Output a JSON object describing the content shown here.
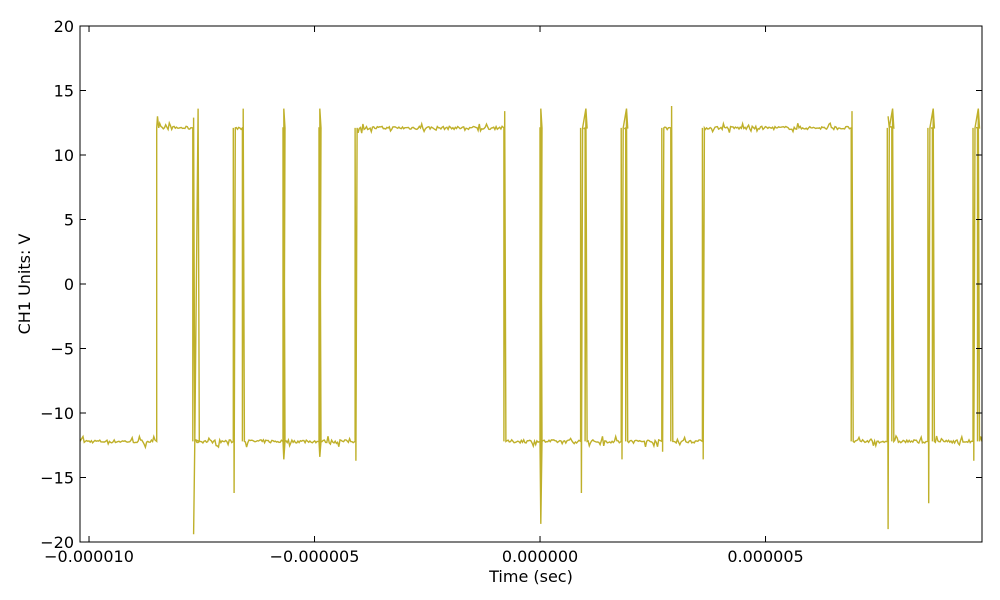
{
  "chart_data": {
    "type": "line",
    "title": "",
    "xlabel": "Time (sec)",
    "ylabel": "CH1 Units: V",
    "xlim": [
      -1.02e-05,
      9.8e-06
    ],
    "ylim": [
      -20,
      20
    ],
    "x_ticks": [
      -1e-05,
      -5e-06,
      0.0,
      5e-06
    ],
    "x_tick_labels": [
      "−0.000010",
      "−0.000005",
      "0.000000",
      "0.000005"
    ],
    "y_ticks": [
      -20,
      -15,
      -10,
      -5,
      0,
      5,
      10,
      15,
      20
    ],
    "y_tick_labels": [
      "−20",
      "−15",
      "−10",
      "−5",
      "0",
      "5",
      "10",
      "15",
      "20"
    ],
    "grid": false,
    "legend": "none",
    "series": [
      {
        "color": "#bfb02a",
        "low_level": -12.2,
        "high_level": 12.1,
        "start_level": -12.2,
        "transitions": [
          -8.5e-06,
          -7.7e-06,
          -6.8e-06,
          -6.6e-06,
          -5.7e-06,
          -5.7e-06,
          -4.9e-06,
          -4.9e-06,
          -4.1e-06,
          -8e-07,
          0.0,
          0.0,
          9e-07,
          1e-06,
          1.8e-06,
          1.9e-06,
          2.7e-06,
          2.9e-06,
          3.6e-06,
          6.9e-06,
          7.7e-06,
          7.8e-06,
          8.6e-06,
          8.7e-06,
          9.6e-06,
          9.7e-06
        ],
        "spikes": [
          {
            "x": -8.5e-06,
            "y": 13.0
          },
          {
            "x": -7.7e-06,
            "y": 12.9
          },
          {
            "x": -7.7e-06,
            "y": -19.4
          },
          {
            "x": -7.6e-06,
            "y": 13.6
          },
          {
            "x": -6.8e-06,
            "y": -16.2
          },
          {
            "x": -6.6e-06,
            "y": 13.6
          },
          {
            "x": -5.7e-06,
            "y": -13.6
          },
          {
            "x": -5.7e-06,
            "y": 13.6
          },
          {
            "x": -4.9e-06,
            "y": -13.4
          },
          {
            "x": -4.9e-06,
            "y": 13.6
          },
          {
            "x": -4.1e-06,
            "y": -13.7
          },
          {
            "x": -8e-07,
            "y": 13.4
          },
          {
            "x": 0.0,
            "y": -18.6
          },
          {
            "x": 0.0,
            "y": 13.6
          },
          {
            "x": 9e-07,
            "y": -16.2
          },
          {
            "x": 1e-06,
            "y": 13.6
          },
          {
            "x": 1.8e-06,
            "y": -13.6
          },
          {
            "x": 1.9e-06,
            "y": 13.6
          },
          {
            "x": 2.7e-06,
            "y": -13.0
          },
          {
            "x": 2.9e-06,
            "y": 13.8
          },
          {
            "x": 3.6e-06,
            "y": -13.6
          },
          {
            "x": 6.9e-06,
            "y": 13.4
          },
          {
            "x": 7.7e-06,
            "y": -19.0
          },
          {
            "x": 7.7e-06,
            "y": 13.0
          },
          {
            "x": 7.8e-06,
            "y": 13.6
          },
          {
            "x": 8.6e-06,
            "y": -17.0
          },
          {
            "x": 8.7e-06,
            "y": 13.6
          },
          {
            "x": 9.6e-06,
            "y": -13.7
          },
          {
            "x": 9.7e-06,
            "y": 13.6
          }
        ]
      }
    ]
  }
}
